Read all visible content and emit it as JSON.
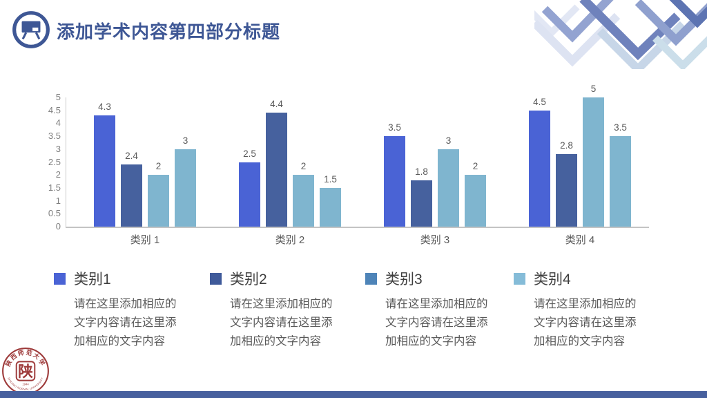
{
  "header": {
    "title": "添加学术内容第四部分标题",
    "icon": "presentation-board-icon",
    "accent_color": "#3E5795"
  },
  "chart_data": {
    "type": "bar",
    "title": "",
    "xlabel": "",
    "ylabel": "",
    "categories": [
      "类别 1",
      "类别 2",
      "类别 3",
      "类别 4"
    ],
    "series": [
      {
        "name": "类别1",
        "color": "#4A63D5",
        "values": [
          4.3,
          2.5,
          3.5,
          4.5
        ]
      },
      {
        "name": "类别2",
        "color": "#46619E",
        "values": [
          2.4,
          4.4,
          1.8,
          2.8
        ]
      },
      {
        "name": "类别3",
        "color": "#7FB5CF",
        "values": [
          2,
          2,
          3,
          5
        ]
      },
      {
        "name": "类别4",
        "color": "#7FB5CF",
        "values": [
          3,
          1.5,
          2,
          3.5
        ]
      }
    ],
    "ylim": [
      0,
      5
    ],
    "ytick_step": 0.5,
    "yticks": [
      "5",
      "4.5",
      "4",
      "3.5",
      "3",
      "2.5",
      "2",
      "1.5",
      "1",
      "0.5",
      "0"
    ],
    "grid": false,
    "value_labels": true,
    "legend_position": "cards-below",
    "axis_color": "#c8c8c8",
    "tick_label_color": "#7f7f7f",
    "value_label_color": "#595959"
  },
  "legend": {
    "items": [
      {
        "label": "类别1",
        "color": "#4A63D5",
        "description": "请在这里添加相应的文字内容请在这里添加相应的文字内容"
      },
      {
        "label": "类别2",
        "color": "#3F5A9A",
        "description": "请在这里添加相应的文字内容请在这里添加相应的文字内容"
      },
      {
        "label": "类别3",
        "color": "#4E84B8",
        "description": "请在这里添加相应的文字内容请在这里添加相应的文字内容"
      },
      {
        "label": "类别4",
        "color": "#85BCD8",
        "description": "请在这里添加相应的文字内容请在这里添加相应的文字内容"
      }
    ]
  },
  "logo": {
    "name": "shaanxi-normal-university-seal",
    "ring_text_top": "陕西师范大学",
    "center_glyph": "陕",
    "year": "1944",
    "ring_text_bottom": "SHAANXI NORMAL UNIVERSITY",
    "color": "#9E3B3B"
  },
  "footer": {
    "bar_color": "#47609E"
  }
}
